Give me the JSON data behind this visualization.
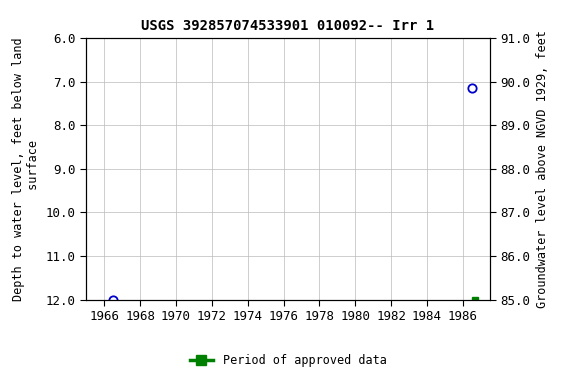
{
  "title": "USGS 392857074533901 010092-- Irr 1",
  "ylabel_left": "Depth to water level, feet below land\n surface",
  "ylabel_right": "Groundwater level above NGVD 1929, feet",
  "ylim_left_bottom": 12.0,
  "ylim_left_top": 6.0,
  "ylim_right_bottom": 85.0,
  "ylim_right_top": 91.0,
  "xlim": [
    1965.0,
    1987.5
  ],
  "xticks": [
    1966,
    1968,
    1970,
    1972,
    1974,
    1976,
    1978,
    1980,
    1982,
    1984,
    1986
  ],
  "yticks_left": [
    6.0,
    7.0,
    8.0,
    9.0,
    10.0,
    11.0,
    12.0
  ],
  "yticks_right": [
    91.0,
    90.0,
    89.0,
    88.0,
    87.0,
    86.0,
    85.0
  ],
  "blue_points_x": [
    1966.5,
    1986.5
  ],
  "blue_points_y": [
    12.0,
    7.15
  ],
  "green_point_x": [
    1986.7
  ],
  "green_point_y": [
    12.0
  ],
  "legend_label": "Period of approved data",
  "legend_color": "#008000",
  "point_color": "#0000cc",
  "background_color": "#ffffff",
  "grid_color": "#bbbbbb",
  "title_fontsize": 10,
  "label_fontsize": 8.5,
  "tick_fontsize": 9
}
